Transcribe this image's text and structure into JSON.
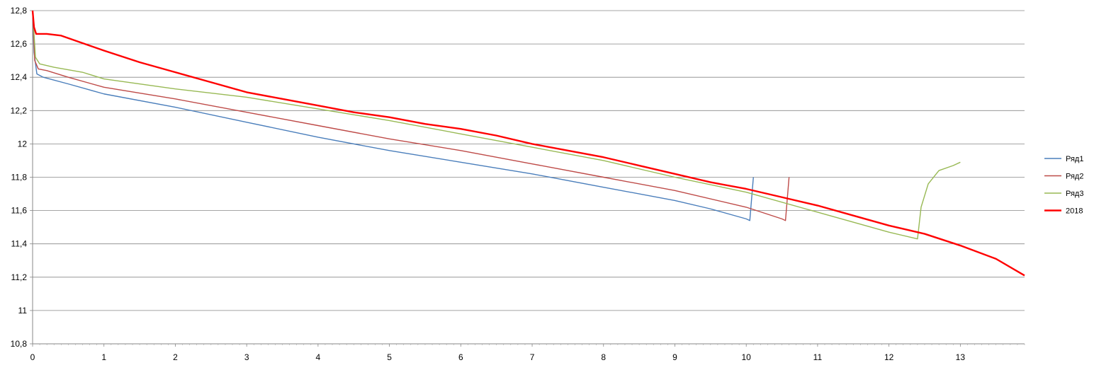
{
  "chart_data": {
    "type": "line",
    "xlim": [
      0,
      13.9
    ],
    "ylim": [
      10.8,
      12.8
    ],
    "x_ticks": [
      "0",
      "1",
      "2",
      "3",
      "4",
      "5",
      "6",
      "7",
      "8",
      "9",
      "10",
      "11",
      "12",
      "13"
    ],
    "y_ticks": [
      "10,8",
      "11",
      "11,2",
      "11,4",
      "11,6",
      "11,8",
      "12",
      "12,2",
      "12,4",
      "12,6",
      "12,8"
    ],
    "grid": "horizontal",
    "legend_position": "right",
    "series": [
      {
        "name": "Ряд1",
        "color": "#4a7ebb",
        "x": [
          0,
          0.02,
          0.06,
          0.15,
          0.5,
          1,
          2,
          3,
          4,
          5,
          6,
          7,
          8,
          9,
          9.5,
          10.0,
          10.05,
          10.1
        ],
        "y": [
          12.8,
          12.55,
          12.42,
          12.4,
          12.36,
          12.3,
          12.22,
          12.13,
          12.04,
          11.96,
          11.89,
          11.82,
          11.74,
          11.66,
          11.61,
          11.55,
          11.54,
          11.8
        ]
      },
      {
        "name": "Ряд2",
        "color": "#be4b48",
        "x": [
          0,
          0.03,
          0.08,
          0.2,
          0.5,
          1,
          2,
          3,
          4,
          5,
          6,
          7,
          8,
          9,
          10,
          10.5,
          10.55,
          10.6
        ],
        "y": [
          12.8,
          12.5,
          12.45,
          12.44,
          12.4,
          12.34,
          12.27,
          12.19,
          12.11,
          12.03,
          11.96,
          11.88,
          11.8,
          11.72,
          11.62,
          11.55,
          11.54,
          11.8
        ]
      },
      {
        "name": "Ряд3",
        "color": "#98b954",
        "x": [
          0,
          0.04,
          0.1,
          0.3,
          0.7,
          1,
          2,
          3,
          4,
          5,
          6,
          7,
          8,
          9,
          10,
          11,
          12,
          12.4,
          12.45,
          12.55,
          12.7,
          12.9,
          13.0
        ],
        "y": [
          12.8,
          12.52,
          12.48,
          12.46,
          12.43,
          12.39,
          12.33,
          12.28,
          12.21,
          12.14,
          12.06,
          11.98,
          11.9,
          11.8,
          11.71,
          11.59,
          11.47,
          11.43,
          11.62,
          11.76,
          11.84,
          11.87,
          11.89
        ]
      },
      {
        "name": "2018",
        "color": "#ff0000",
        "x": [
          0,
          0.02,
          0.05,
          0.2,
          0.4,
          0.8,
          1,
          1.5,
          2,
          2.5,
          3,
          3.5,
          4,
          4.5,
          5,
          5.5,
          6,
          6.5,
          7,
          7.5,
          8,
          8.5,
          9,
          9.5,
          10,
          10.5,
          11,
          11.5,
          12,
          12.5,
          13,
          13.5,
          13.9
        ],
        "y": [
          12.8,
          12.7,
          12.66,
          12.66,
          12.65,
          12.59,
          12.56,
          12.49,
          12.43,
          12.37,
          12.31,
          12.27,
          12.23,
          12.19,
          12.16,
          12.12,
          12.09,
          12.05,
          12.0,
          11.96,
          11.92,
          11.87,
          11.82,
          11.77,
          11.73,
          11.68,
          11.63,
          11.57,
          11.51,
          11.46,
          11.39,
          11.31,
          11.21
        ]
      }
    ]
  }
}
